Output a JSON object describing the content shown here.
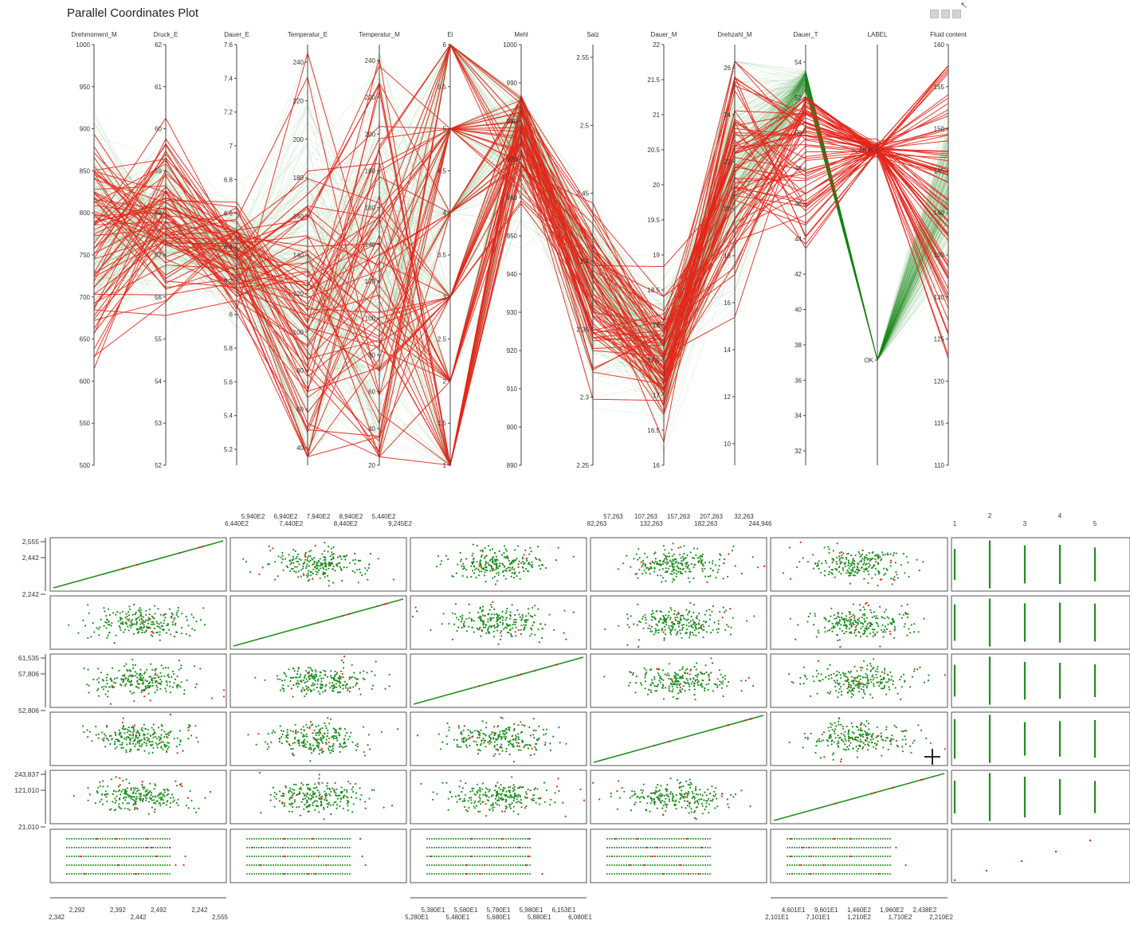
{
  "window": {
    "title": "Parallel Coordinates Plot",
    "controls": [
      "minimize-icon",
      "maximize-icon",
      "menu-icon"
    ]
  },
  "colors": {
    "nok": "#e4261b",
    "ok": "#1f8e1f",
    "ok_light": "#9fd59f",
    "axis": "#333333"
  },
  "chart_data": [
    {
      "type": "parallel-coordinates",
      "title": "Parallel Coordinates Plot",
      "axes": [
        {
          "name": "Drehmoment_M",
          "range": [
            500,
            1000
          ],
          "ticks": [
            "1000",
            "950",
            "900",
            "850",
            "800",
            "750",
            "700",
            "650",
            "600",
            "550",
            "500"
          ]
        },
        {
          "name": "Druck_E",
          "range": [
            52,
            62
          ],
          "ticks": [
            "62",
            "61",
            "60",
            "59",
            "58",
            "57",
            "56",
            "55",
            "54",
            "53",
            "52"
          ]
        },
        {
          "name": "Dauer_E",
          "range": [
            5.1,
            7.6
          ],
          "ticks": [
            "7.6",
            "7.4",
            "7.2",
            "7",
            "6.8",
            "6.6",
            "6.4",
            "6.2",
            "6",
            "5.8",
            "5.6",
            "5.4",
            "5.2"
          ]
        },
        {
          "name": "Temperatur_E",
          "range": [
            30,
            250
          ],
          "ticks": [
            "240",
            "220",
            "200",
            "180",
            "160",
            "140",
            "120",
            "100",
            "80",
            "60",
            "40"
          ]
        },
        {
          "name": "Temperatur_M",
          "range": [
            20,
            245
          ],
          "ticks": [
            "240",
            "220",
            "200",
            "180",
            "160",
            "140",
            "120",
            "100",
            "80",
            "60",
            "40",
            "20"
          ]
        },
        {
          "name": "Ei",
          "range": [
            1,
            6
          ],
          "ticks": [
            "6",
            "5.5",
            "5",
            "4.5",
            "4",
            "3.5",
            "3",
            "2.5",
            "2",
            "1.5",
            "1"
          ]
        },
        {
          "name": "Mehl",
          "range": [
            890,
            1000
          ],
          "ticks": [
            "1000",
            "990",
            "980",
            "970",
            "960",
            "950",
            "940",
            "930",
            "920",
            "910",
            "900",
            "890"
          ]
        },
        {
          "name": "Salz",
          "range": [
            2.2,
            2.56
          ],
          "ticks": [
            "2.55",
            "2.5",
            "2.45",
            "2.4",
            "2.35",
            "2.3",
            "2.25"
          ]
        },
        {
          "name": "Dauer_M",
          "range": [
            16,
            22
          ],
          "ticks": [
            "22",
            "21.5",
            "21",
            "20.5",
            "20",
            "19.5",
            "19",
            "18.5",
            "18",
            "17.5",
            "17",
            "16.5",
            "16"
          ]
        },
        {
          "name": "Drehzahl_M",
          "range": [
            9,
            27
          ],
          "ticks": [
            "26",
            "24",
            "22",
            "20",
            "18",
            "16",
            "14",
            "12",
            "10"
          ]
        },
        {
          "name": "Dauer_T",
          "range": [
            31,
            55
          ],
          "ticks": [
            "54",
            "52",
            "50",
            "48",
            "46",
            "44",
            "42",
            "40",
            "38",
            "36",
            "34",
            "32"
          ]
        },
        {
          "name": "LABEL",
          "range": [
            0,
            1
          ],
          "ticks": [
            "NOK",
            "OK"
          ]
        },
        {
          "name": "Fluid content",
          "range": [
            110,
            160
          ],
          "ticks": [
            "160",
            "155",
            "150",
            "145",
            "140",
            "135",
            "130",
            "125",
            "120",
            "115",
            "110"
          ]
        }
      ],
      "series": [
        {
          "name": "NOK",
          "color": "#e4261b",
          "label_value": "NOK"
        },
        {
          "name": "OK",
          "color": "#1f8e1f",
          "label_value": "OK"
        }
      ],
      "grid": false,
      "legend": "none"
    },
    {
      "type": "scatter",
      "subtype": "scatter-matrix",
      "rows": 6,
      "cols": 6,
      "top_tick_labels": {
        "col2": [
          "5,940E2",
          "6,940E2",
          "7,940E2",
          "8,940E2",
          "5,440E2",
          "6,440E2",
          "7,440E2",
          "8,440E2",
          "9,245E2"
        ],
        "col4": [
          "57,263",
          "107,263",
          "157,263",
          "207,263",
          "32,263",
          "82,263",
          "132,263",
          "182,263",
          "244,946"
        ],
        "col6": [
          "1",
          "2",
          "3",
          "4",
          "5"
        ]
      },
      "left_tick_labels": {
        "row1": [
          "2,555",
          "2,442",
          "2,242"
        ],
        "row3": [
          "61,535",
          "57,806",
          "52,806"
        ],
        "row5": [
          "243,837",
          "121,010",
          "21,010"
        ]
      },
      "bottom_tick_labels": {
        "col1": [
          "2,292",
          "2,392",
          "2,492",
          "2,242",
          "2,342",
          "2,442",
          "2,555"
        ],
        "col3": [
          "5,380E1",
          "5,580E1",
          "5,780E1",
          "5,980E1",
          "6,153E1",
          "5,280E1",
          "5,480E1",
          "5,680E1",
          "5,880E1",
          "6,080E1"
        ],
        "col5": [
          "4,601E1",
          "9,601E1",
          "1,460E2",
          "1,960E2",
          "2,438E2",
          "2,101E1",
          "7,101E1",
          "1,210E2",
          "1,710E2",
          "2,210E2"
        ]
      },
      "series": [
        {
          "name": "OK",
          "color": "#1f8e1f"
        },
        {
          "name": "NOK",
          "color": "#e4261b"
        }
      ]
    }
  ]
}
